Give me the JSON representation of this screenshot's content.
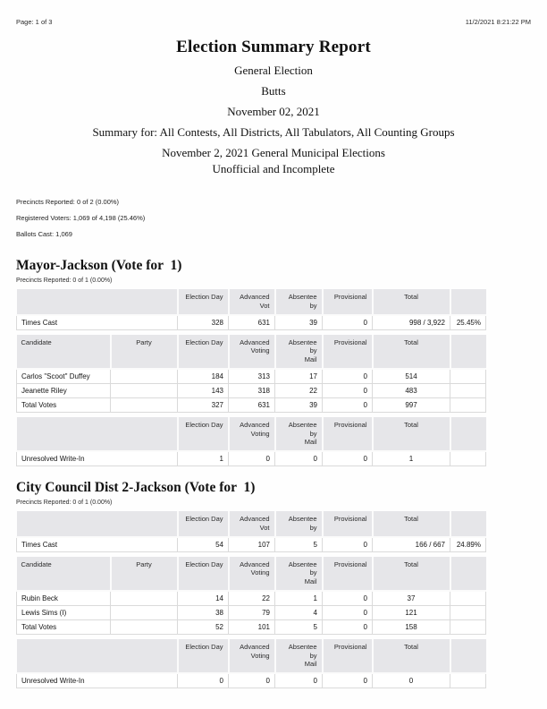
{
  "page": {
    "page_label": "Page: 1 of 3",
    "timestamp": "11/2/2021 8:21:22 PM"
  },
  "title_block": {
    "title": "Election Summary Report",
    "election_type": "General Election",
    "county": "Butts",
    "date": "November 02, 2021",
    "summary_scope": "Summary for: All Contests, All Districts, All Tabulators, All Counting Groups",
    "election_name": "November 2, 2021 General Municipal Elections",
    "status": "Unofficial and Incomplete"
  },
  "overall_stats": {
    "precincts_reported": "Precincts Reported: 0 of 2 (0.00%)",
    "registered_voters": "Registered Voters: 1,069 of 4,198 (25.46%)",
    "ballots_cast": "Ballots Cast: 1,069"
  },
  "columns": {
    "candidate": "Candidate",
    "party": "Party",
    "election_day": "Election Day",
    "advanced_short": "Advanced Vot",
    "absentee_short": "Absentee by",
    "advanced_line1": "Advanced",
    "advanced_line2": "Voting",
    "absentee_line1": "Absentee by",
    "absentee_line2": "Mail",
    "provisional": "Provisional",
    "total": "Total"
  },
  "contests": [
    {
      "title": "Mayor-Jackson (Vote for  1)",
      "precincts": "Precincts Reported: 0 of 1 (0.00%)",
      "times_cast": {
        "label": "Times Cast",
        "election_day": "328",
        "advanced": "631",
        "absentee": "39",
        "provisional": "0",
        "total": "998 / 3,922",
        "percent": "25.45%"
      },
      "candidates": [
        {
          "name": "Carlos \"Scoot\" Duffey",
          "party": "",
          "election_day": "184",
          "advanced": "313",
          "absentee": "17",
          "provisional": "0",
          "total": "514"
        },
        {
          "name": "Jeanette Riley",
          "party": "",
          "election_day": "143",
          "advanced": "318",
          "absentee": "22",
          "provisional": "0",
          "total": "483"
        },
        {
          "name": "Total Votes",
          "party": "",
          "election_day": "327",
          "advanced": "631",
          "absentee": "39",
          "provisional": "0",
          "total": "997"
        }
      ],
      "write_in": {
        "label": "Unresolved Write-In",
        "election_day": "1",
        "advanced": "0",
        "absentee": "0",
        "provisional": "0",
        "total": "1"
      }
    },
    {
      "title": "City Council Dist 2-Jackson (Vote for  1)",
      "precincts": "Precincts Reported: 0 of 1 (0.00%)",
      "times_cast": {
        "label": "Times Cast",
        "election_day": "54",
        "advanced": "107",
        "absentee": "5",
        "provisional": "0",
        "total": "166 / 667",
        "percent": "24.89%"
      },
      "candidates": [
        {
          "name": "Rubin Beck",
          "party": "",
          "election_day": "14",
          "advanced": "22",
          "absentee": "1",
          "provisional": "0",
          "total": "37"
        },
        {
          "name": "Lewis Sims (I)",
          "party": "",
          "election_day": "38",
          "advanced": "79",
          "absentee": "4",
          "provisional": "0",
          "total": "121"
        },
        {
          "name": "Total Votes",
          "party": "",
          "election_day": "52",
          "advanced": "101",
          "absentee": "5",
          "provisional": "0",
          "total": "158"
        }
      ],
      "write_in": {
        "label": "Unresolved Write-In",
        "election_day": "0",
        "advanced": "0",
        "absentee": "0",
        "provisional": "0",
        "total": "0"
      }
    }
  ]
}
